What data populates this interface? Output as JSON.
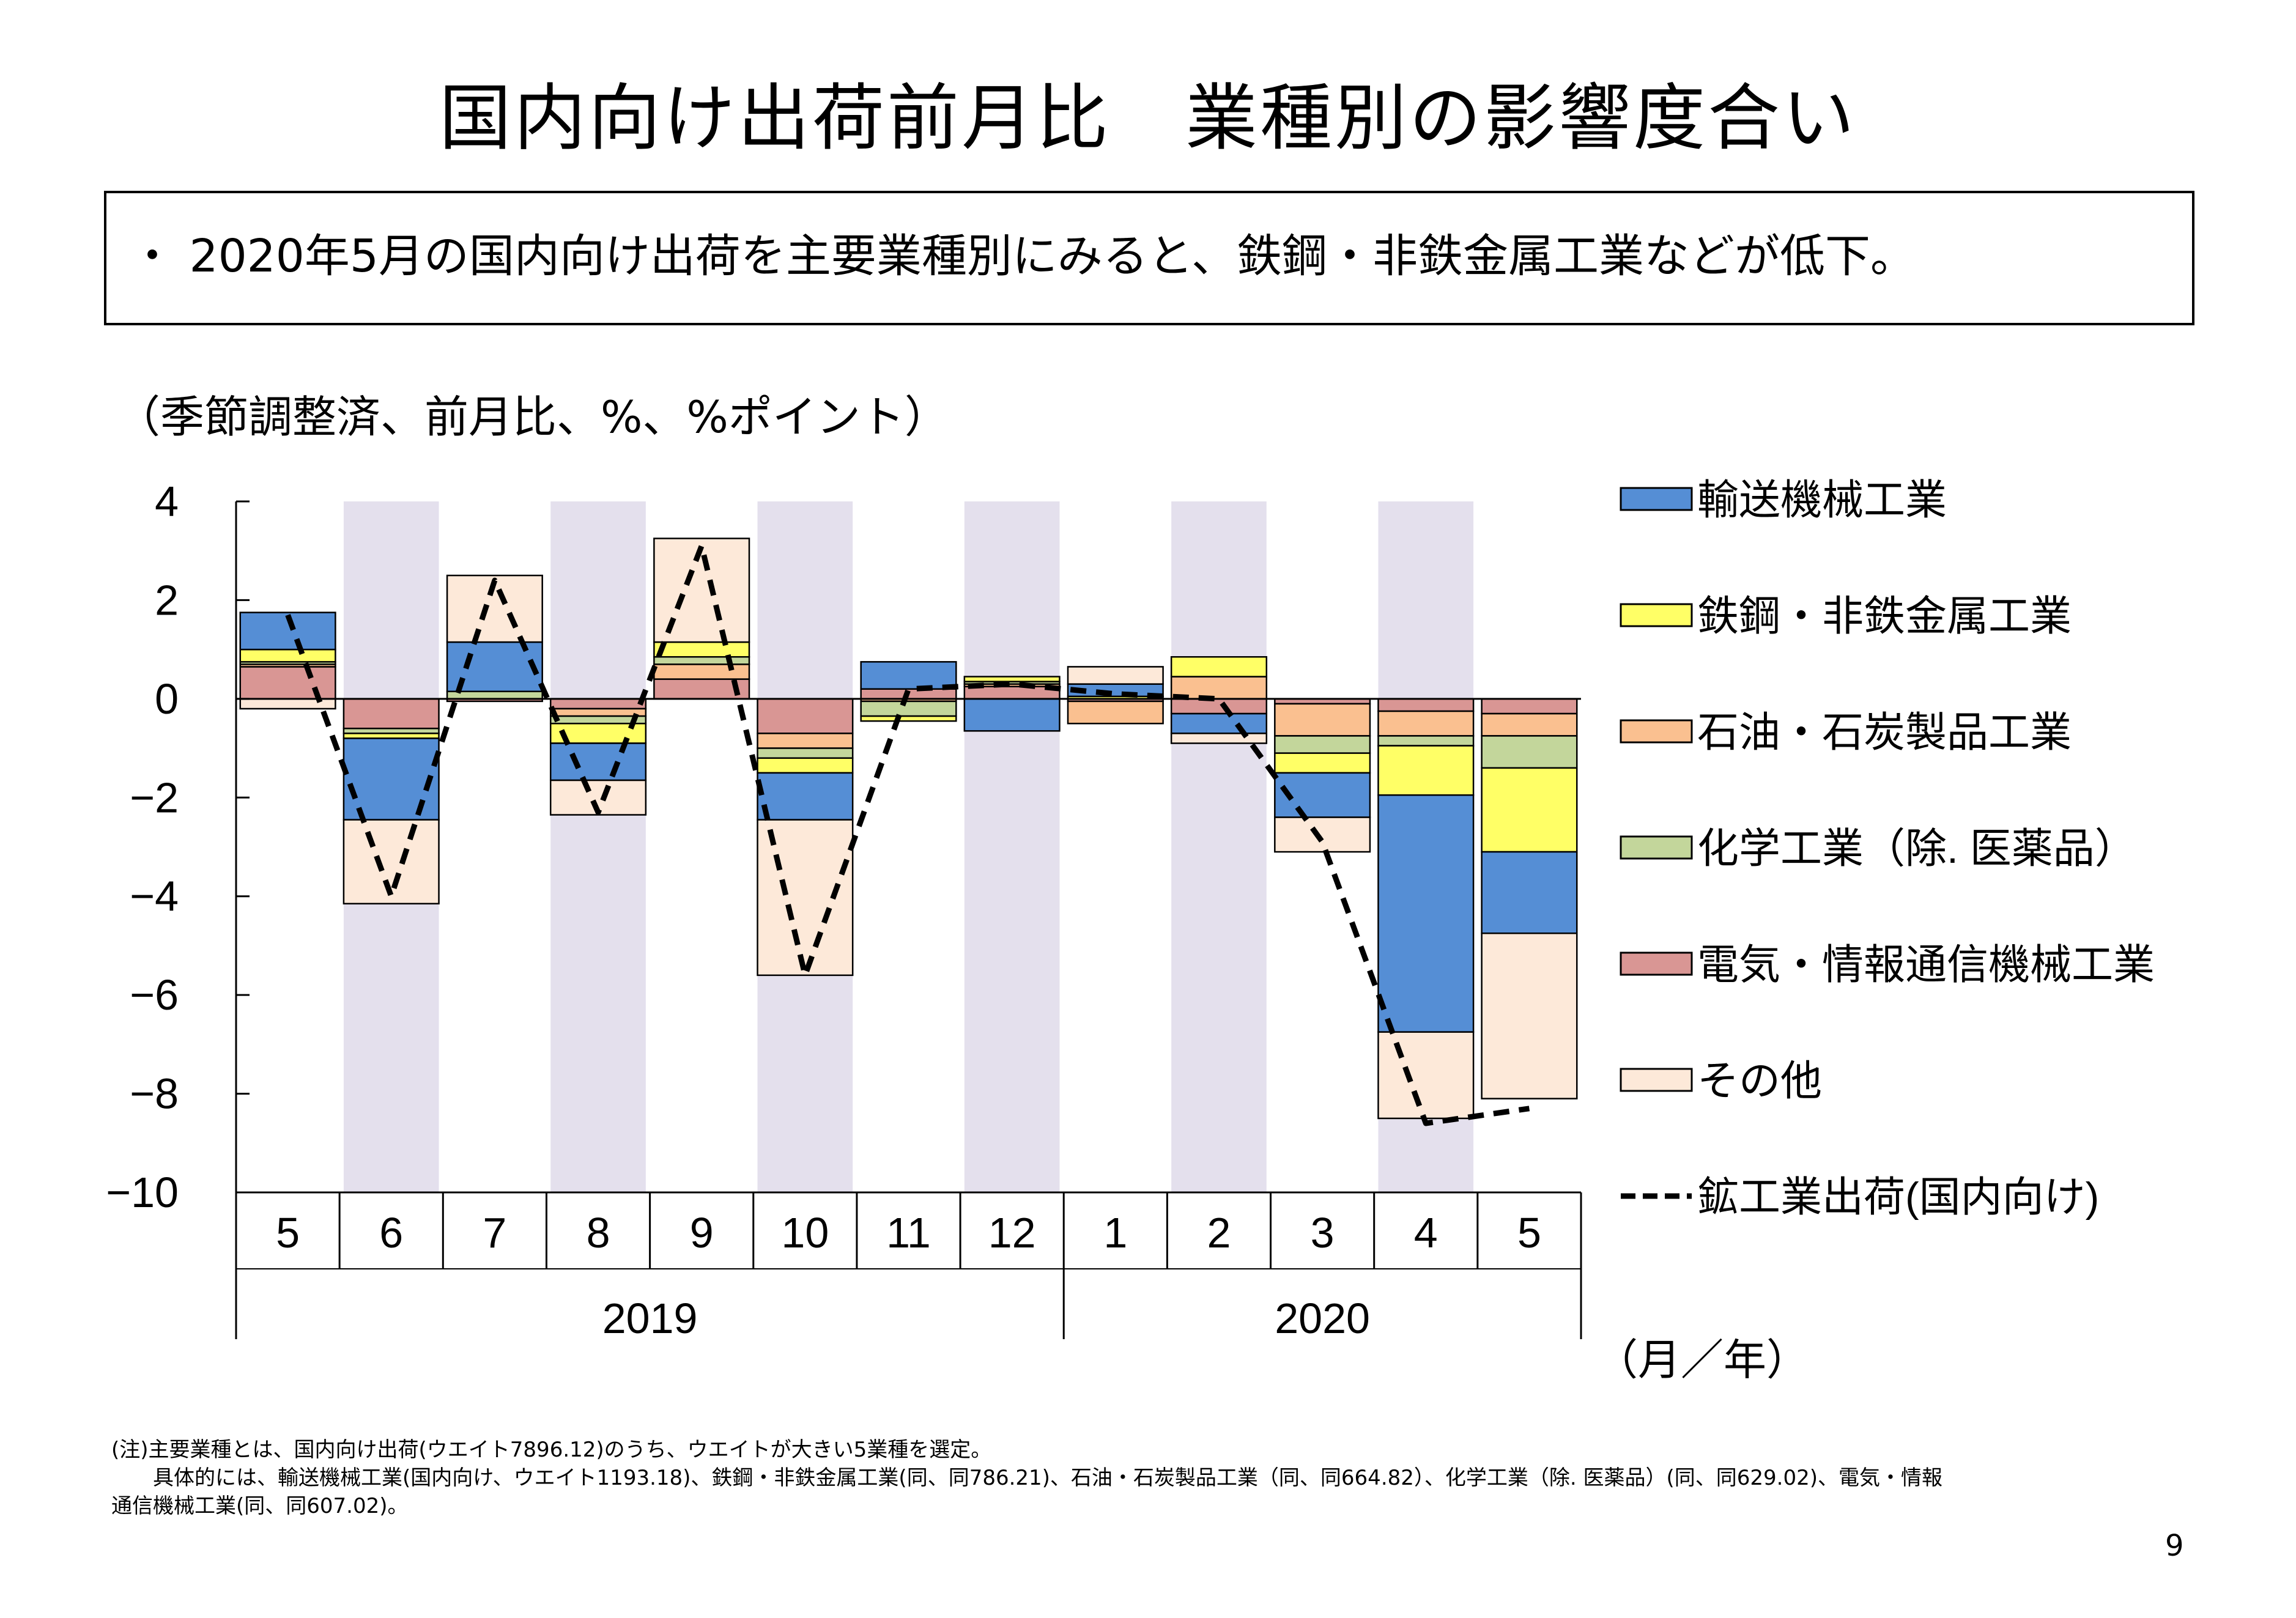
{
  "page": {
    "title": "国内向け出荷前月比　業種別の影響度合い",
    "summary": "・ 2020年5月の国内向け出荷を主要業種別にみると、鉄鋼・非鉄金属工業などが低下。",
    "unit_label": "（季節調整済、前月比、%、%ポイント）",
    "note_lines": [
      "(注)主要業種とは、国内向け出荷(ウエイト7896.12)のうち、ウエイトが大きい5業種を選定。",
      "　　具体的には、輸送機械工業(国内向け、ウエイト1193.18)、鉄鋼・非鉄金属工業(同、同786.21)、石油・石炭製品工業（同、同664.82）、化学工業（除. 医薬品）(同、同629.02)、電気・情報",
      "通信機械工業(同、同607.02)。"
    ],
    "page_number": "9"
  },
  "chart_data": {
    "type": "bar",
    "stacked": true,
    "categories": [
      "5",
      "6",
      "7",
      "8",
      "9",
      "10",
      "11",
      "12",
      "1",
      "2",
      "3",
      "4",
      "5"
    ],
    "year_groups": [
      {
        "label": "2019",
        "start": 0,
        "end": 7
      },
      {
        "label": "2020",
        "start": 8,
        "end": 12
      }
    ],
    "shaded_categories": [
      1,
      3,
      5,
      7,
      9,
      11
    ],
    "shade_color": "#e4e0ed",
    "x_unit_label": "（月／年）",
    "ylim": [
      -10,
      4
    ],
    "yticks": [
      4,
      2,
      0,
      -2,
      -4,
      -6,
      -8,
      -10
    ],
    "ytick_labels": [
      "4",
      "2",
      "0",
      "−2",
      "−4",
      "−6",
      "−8",
      "−10"
    ],
    "series": [
      {
        "name": "電気・情報通信機械工業",
        "color": "#d99694",
        "values": [
          0.65,
          -0.6,
          -0.05,
          -0.2,
          0.4,
          -0.7,
          0.2,
          0.25,
          -0.05,
          -0.3,
          -0.1,
          -0.25,
          -0.3
        ]
      },
      {
        "name": "石油・石炭製品工業",
        "color": "#fac090",
        "values": [
          0.05,
          0.0,
          0.0,
          -0.15,
          0.3,
          -0.3,
          -0.05,
          0.05,
          -0.45,
          0.45,
          -0.65,
          -0.5,
          -0.45
        ]
      },
      {
        "name": "化学工業（除. 医薬品）",
        "color": "#c3d69b",
        "values": [
          0.05,
          -0.1,
          0.15,
          -0.15,
          0.15,
          -0.2,
          -0.3,
          0.05,
          0.0,
          0.0,
          -0.35,
          -0.2,
          -0.65
        ]
      },
      {
        "name": "鉄鋼・非鉄金属工業",
        "color": "#ffff66",
        "values": [
          0.25,
          -0.1,
          0.0,
          -0.4,
          0.3,
          -0.3,
          -0.1,
          0.1,
          0.05,
          0.4,
          -0.4,
          -1.0,
          -1.7
        ]
      },
      {
        "name": "輸送機械工業",
        "color": "#558ed5",
        "values": [
          0.75,
          -1.65,
          1.0,
          -0.75,
          0.0,
          -0.95,
          0.55,
          -0.65,
          0.25,
          -0.4,
          -0.9,
          -4.8,
          -1.65
        ]
      },
      {
        "name": "その他",
        "color": "#fde9d9",
        "values": [
          -0.2,
          -1.7,
          1.35,
          -0.7,
          2.1,
          -3.15,
          0.0,
          0.0,
          0.35,
          -0.2,
          -0.7,
          -1.75,
          -3.35
        ]
      }
    ],
    "legend_order": [
      "輸送機械工業",
      "鉄鋼・非鉄金属工業",
      "石油・石炭製品工業",
      "化学工業（除. 医薬品）",
      "電気・情報通信機械工業",
      "その他"
    ],
    "line": {
      "name": "鉱工業出荷(国内向け)",
      "style": "dashed",
      "color": "#000000",
      "values": [
        1.7,
        -4.0,
        2.4,
        -2.3,
        3.1,
        -5.6,
        0.2,
        0.3,
        0.1,
        0.0,
        -2.9,
        -8.6,
        -8.3
      ]
    },
    "legend_placement": "right",
    "grid": false
  }
}
